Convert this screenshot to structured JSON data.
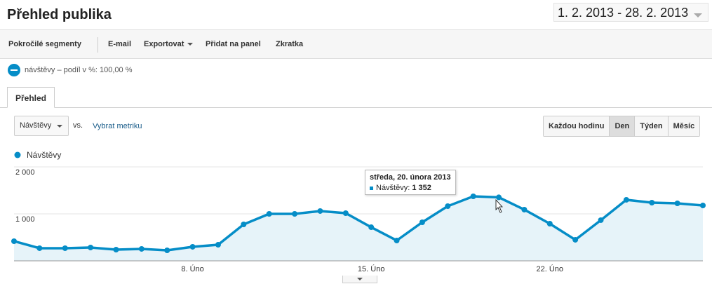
{
  "header": {
    "title": "Přehled publika",
    "date_range": "1. 2. 2013 - 28. 2. 2013"
  },
  "toolbar": {
    "items": [
      "Pokročilé segmenty",
      "E-mail",
      "Exportovat",
      "Přidat na panel",
      "Zkratka"
    ]
  },
  "segment": "návštěvy – podíl v %: 100,00 %",
  "tab": "Přehled",
  "controls": {
    "metric": "Návštěvy",
    "vs": "vs.",
    "pick_metric": "Vybrat metriku",
    "granularity": [
      "Každou hodinu",
      "Den",
      "Týden",
      "Měsíc"
    ]
  },
  "chart_data": {
    "type": "line",
    "categories": [
      null,
      null,
      null,
      null,
      null,
      null,
      null,
      "8. Úno",
      null,
      null,
      null,
      null,
      null,
      null,
      "15. Úno",
      null,
      null,
      null,
      null,
      null,
      null,
      "22. Úno",
      null,
      null,
      null,
      null,
      null,
      null
    ],
    "series": [
      {
        "name": "Návštěvy",
        "color": "#058dc7",
        "values": [
          418,
          269,
          269,
          284,
          239,
          254,
          224,
          299,
          343,
          776,
          1000,
          1000,
          1060,
          1015,
          716,
          433,
          821,
          1164,
          1373,
          1352,
          1090,
          791,
          448,
          866,
          1299,
          1239,
          1224,
          1179
        ]
      }
    ],
    "ylim": [
      0,
      2000
    ],
    "yticks": [
      {
        "value": 1000,
        "label": "1 000"
      },
      {
        "value": 2000,
        "label": "2 000"
      }
    ],
    "grid": true,
    "area_fill": "#e6f3f9",
    "tooltip": {
      "title": "středa, 20. února 2013",
      "series": "Návštěvy:",
      "value": "1 352"
    }
  }
}
